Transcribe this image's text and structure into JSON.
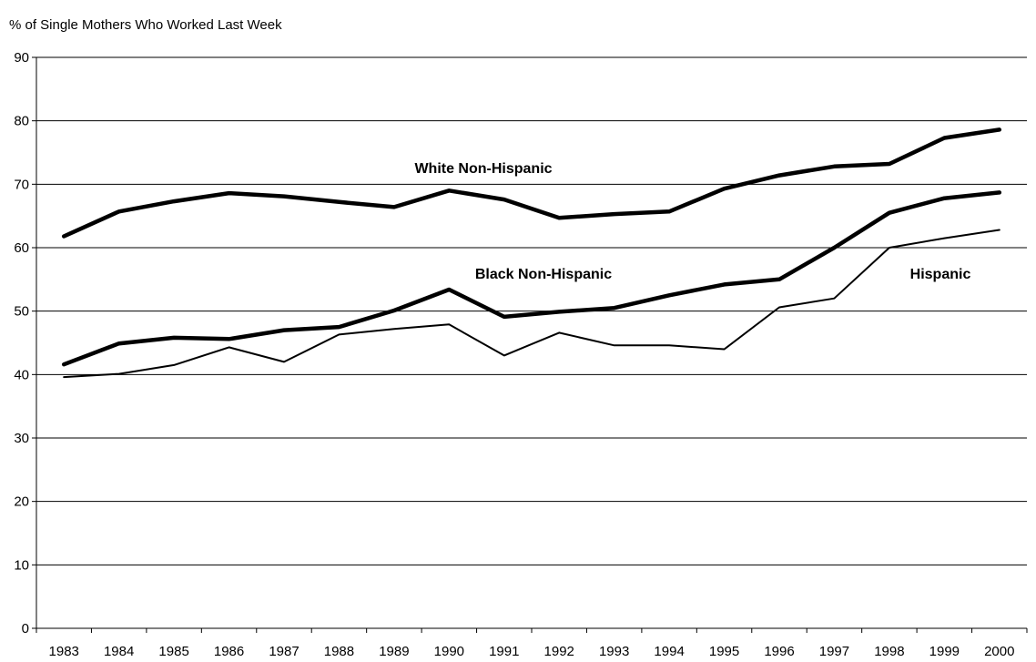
{
  "chart_data": {
    "type": "line",
    "title": "",
    "ylabel": "% of Single Mothers Who Worked Last Week",
    "xlabel": "",
    "ylim": [
      0,
      90
    ],
    "yticks": [
      0,
      10,
      20,
      30,
      40,
      50,
      60,
      70,
      80,
      90
    ],
    "grid": "horizontal",
    "legend": "inline labels",
    "categories": [
      "1983",
      "1984",
      "1985",
      "1986",
      "1987",
      "1988",
      "1989",
      "1990",
      "1991",
      "1992",
      "1993",
      "1994",
      "1995",
      "1996",
      "1997",
      "1998",
      "1999",
      "2000"
    ],
    "series": [
      {
        "name": "White Non-Hispanic",
        "color": "#000000",
        "weight": "heavy",
        "values": [
          61.8,
          65.7,
          67.3,
          68.6,
          68.1,
          67.2,
          66.4,
          69.0,
          67.6,
          64.7,
          65.3,
          65.7,
          69.3,
          71.4,
          72.8,
          73.2,
          77.3,
          78.6
        ]
      },
      {
        "name": "Black Non-Hispanic",
        "color": "#000000",
        "weight": "heavy",
        "values": [
          41.6,
          44.9,
          45.8,
          45.6,
          47.0,
          47.5,
          50.1,
          53.4,
          49.1,
          49.9,
          50.5,
          52.5,
          54.2,
          55.0,
          60.0,
          65.5,
          67.8,
          68.7
        ]
      },
      {
        "name": "Hispanic",
        "color": "#000000",
        "weight": "light",
        "values": [
          39.6,
          40.1,
          41.5,
          44.3,
          42.0,
          46.3,
          47.2,
          47.9,
          43.0,
          46.6,
          44.6,
          44.6,
          44.0,
          50.6,
          52.0,
          60.0,
          61.5,
          62.8
        ]
      }
    ]
  }
}
